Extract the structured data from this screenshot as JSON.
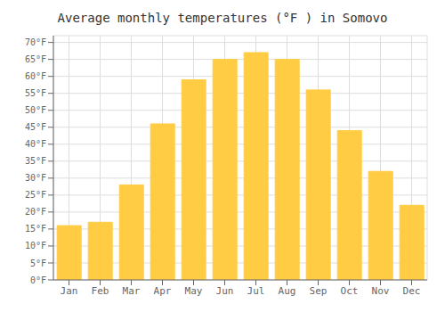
{
  "chart_data": {
    "type": "bar",
    "title": "Average monthly temperatures (°F ) in Somovo",
    "categories": [
      "Jan",
      "Feb",
      "Mar",
      "Apr",
      "May",
      "Jun",
      "Jul",
      "Aug",
      "Sep",
      "Oct",
      "Nov",
      "Dec"
    ],
    "values": [
      16,
      17,
      28,
      46,
      59,
      65,
      67,
      65,
      56,
      44,
      32,
      22
    ],
    "color": "#FFCC44",
    "ylim": [
      0,
      72
    ],
    "yticks": [
      {
        "value": 0,
        "label": "0°F"
      },
      {
        "value": 5,
        "label": "5°F"
      },
      {
        "value": 10,
        "label": "10°F"
      },
      {
        "value": 15,
        "label": "15°F"
      },
      {
        "value": 20,
        "label": "20°F"
      },
      {
        "value": 25,
        "label": "25°F"
      },
      {
        "value": 30,
        "label": "30°F"
      },
      {
        "value": 35,
        "label": "35°F"
      },
      {
        "value": 40,
        "label": "40°F"
      },
      {
        "value": 45,
        "label": "45°F"
      },
      {
        "value": 50,
        "label": "50°F"
      },
      {
        "value": 55,
        "label": "55°F"
      },
      {
        "value": 60,
        "label": "60°F"
      },
      {
        "value": 65,
        "label": "65°F"
      },
      {
        "value": 70,
        "label": "70°F"
      }
    ],
    "grid": true
  }
}
